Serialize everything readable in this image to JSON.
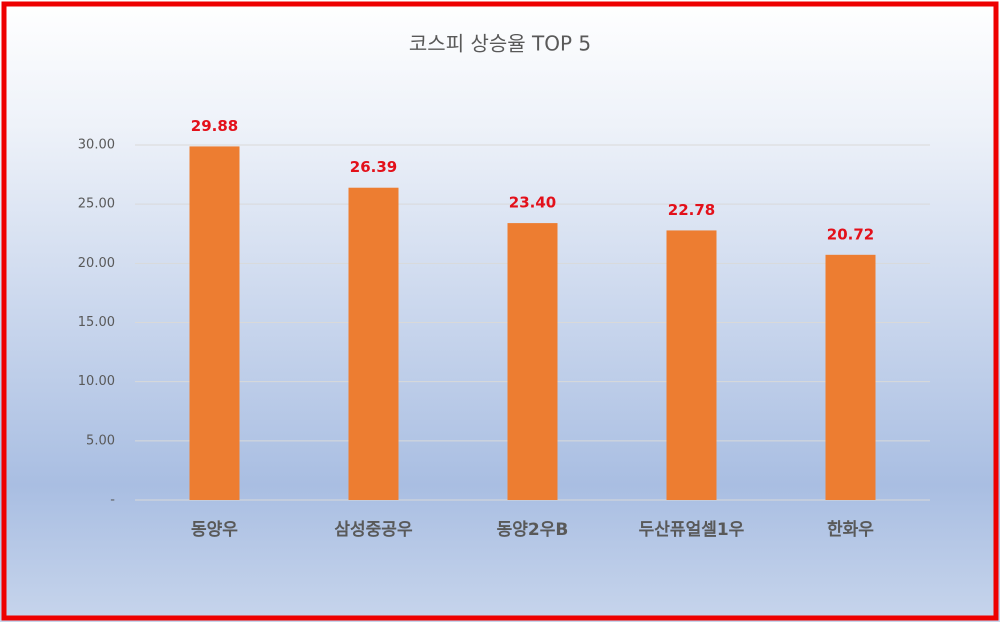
{
  "chart_data": {
    "type": "bar",
    "title": "코스피 상승율 TOP 5",
    "categories": [
      "동양우",
      "삼성중공우",
      "동양2우B",
      "두산퓨얼셀1우",
      "한화우"
    ],
    "values": [
      29.88,
      26.39,
      23.4,
      22.78,
      20.72
    ],
    "value_labels": [
      "29.88",
      "26.39",
      "23.40",
      "22.78",
      "20.72"
    ],
    "color": "#ed7d31",
    "ylim": [
      0,
      30
    ],
    "yticks": [
      {
        "value": 0,
        "label": "-"
      },
      {
        "value": 5,
        "label": "5.00"
      },
      {
        "value": 10,
        "label": "10.00"
      },
      {
        "value": 15,
        "label": "15.00"
      },
      {
        "value": 20,
        "label": "20.00"
      },
      {
        "value": 25,
        "label": "25.00"
      },
      {
        "value": 30,
        "label": "30.00"
      }
    ],
    "grid": true
  }
}
